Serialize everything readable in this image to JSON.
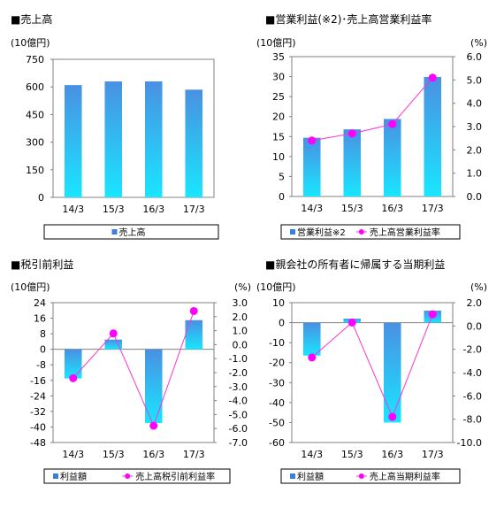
{
  "chart_data": [
    {
      "type": "bar",
      "title": "■売上高",
      "left_unit": "(10億円)",
      "categories": [
        "14/3",
        "15/3",
        "16/3",
        "17/3"
      ],
      "left_axis": {
        "ticks": [
          "750",
          "600",
          "450",
          "300",
          "150",
          "0"
        ],
        "min": 0,
        "max": 750
      },
      "series": [
        {
          "name": "売上高",
          "type": "bar",
          "axis": "left",
          "values": [
            610,
            630,
            630,
            585
          ]
        }
      ],
      "legend": [
        "売上高"
      ],
      "colors": {
        "bar_top": "#4a90e2",
        "bar_bottom": "#19e6ff",
        "line": "#ff33cc",
        "point": "#ff00ff"
      }
    },
    {
      "type": "bar",
      "title": "■営業利益(※2)･売上高営業利益率",
      "left_unit": "(10億円)",
      "right_unit": "(%)",
      "categories": [
        "14/3",
        "15/3",
        "16/3",
        "17/3"
      ],
      "left_axis": {
        "ticks": [
          "35",
          "30",
          "25",
          "20",
          "15",
          "10",
          "5",
          "0"
        ],
        "min": 0,
        "max": 35
      },
      "right_axis": {
        "ticks": [
          "6.0",
          "5.0",
          "4.0",
          "3.0",
          "2.0",
          "1.0",
          "0.0"
        ],
        "min": 0,
        "max": 6
      },
      "series": [
        {
          "name": "営業利益※2",
          "type": "bar",
          "axis": "left",
          "values": [
            14.7,
            16.8,
            19.4,
            29.9
          ]
        },
        {
          "name": "売上高営業利益率",
          "type": "line",
          "axis": "right",
          "values": [
            2.4,
            2.7,
            3.1,
            5.1
          ]
        }
      ],
      "legend": [
        "営業利益※2",
        "売上高営業利益率"
      ],
      "colors": {
        "bar_top": "#4a90e2",
        "bar_bottom": "#19e6ff",
        "line": "#ff33cc",
        "point": "#ff00ff"
      }
    },
    {
      "type": "bar",
      "title": "■税引前利益",
      "left_unit": "(10億円)",
      "right_unit": "(%)",
      "categories": [
        "14/3",
        "15/3",
        "16/3",
        "17/3"
      ],
      "left_axis": {
        "ticks": [
          "24",
          "16",
          "8",
          "0",
          "-8",
          "-16",
          "-24",
          "-32",
          "-40",
          "-48"
        ],
        "min": -48,
        "max": 24
      },
      "right_axis": {
        "ticks": [
          "3.0",
          "2.0",
          "1.0",
          "0.0",
          "-1.0",
          "-2.0",
          "-3.0",
          "-4.0",
          "-5.0",
          "-6.0",
          "-7.0"
        ],
        "min": -7,
        "max": 3
      },
      "series": [
        {
          "name": "利益額",
          "type": "bar",
          "axis": "left",
          "values": [
            -15,
            5,
            -38,
            15
          ]
        },
        {
          "name": "売上高税引前利益率",
          "type": "line",
          "axis": "right",
          "values": [
            -2.4,
            0.8,
            -5.8,
            2.4
          ]
        }
      ],
      "legend": [
        "利益額",
        "売上高税引前利益率"
      ],
      "colors": {
        "bar_top": "#4a90e2",
        "bar_bottom": "#19e6ff",
        "line": "#ff33cc",
        "point": "#ff00ff"
      }
    },
    {
      "type": "bar",
      "title": "■親会社の所有者に帰属する当期利益",
      "left_unit": "(10億円)",
      "right_unit": "(%)",
      "categories": [
        "14/3",
        "15/3",
        "16/3",
        "17/3"
      ],
      "left_axis": {
        "ticks": [
          "10",
          "0",
          "-10",
          "-20",
          "-30",
          "-40",
          "-50",
          "-60"
        ],
        "min": -60,
        "max": 10
      },
      "right_axis": {
        "ticks": [
          "2.0",
          "0.0",
          "-2.0",
          "-4.0",
          "-6.0",
          "-8.0",
          "-10.0"
        ],
        "min": -10,
        "max": 2
      },
      "series": [
        {
          "name": "利益額",
          "type": "bar",
          "axis": "left",
          "values": [
            -16.5,
            2,
            -50,
            6
          ]
        },
        {
          "name": "売上高当期利益率",
          "type": "line",
          "axis": "right",
          "values": [
            -2.7,
            0.3,
            -7.8,
            1.0
          ]
        }
      ],
      "legend": [
        "利益額",
        "売上高当期利益率"
      ],
      "colors": {
        "bar_top": "#4a90e2",
        "bar_bottom": "#19e6ff",
        "line": "#ff33cc",
        "point": "#ff00ff"
      }
    }
  ]
}
